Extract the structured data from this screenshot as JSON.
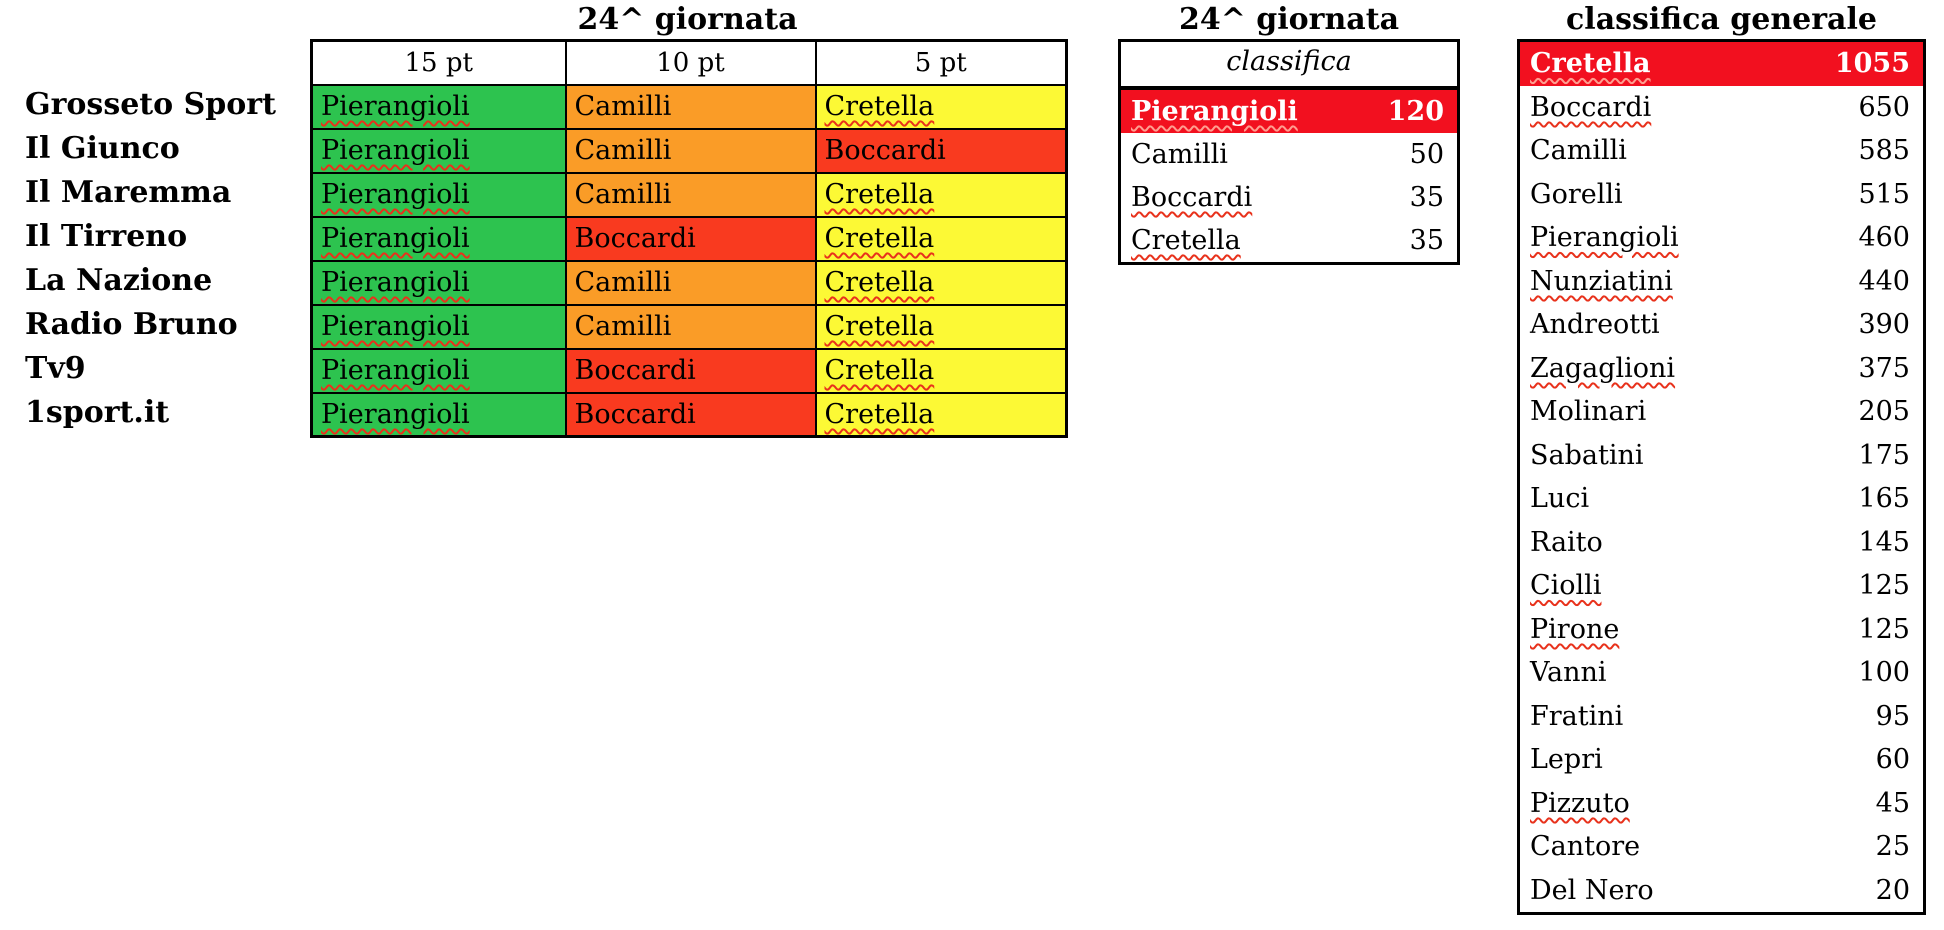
{
  "colors": {
    "cell_green": "#2dc34f",
    "cell_orange": "#fa9c27",
    "cell_red": "#f93a1f",
    "cell_yellow": "#fcf935",
    "highlight_red": "#f2101f",
    "squiggle_red": "#e8321c",
    "squiggle_on_red": "#ff9e90",
    "grid": "#000000"
  },
  "votes_table": {
    "title": "24^ giornata",
    "point_columns": [
      "15 pt",
      "10 pt",
      "5 pt"
    ],
    "rows": [
      {
        "source": "Grosseto Sport",
        "votes": [
          {
            "name": "Pierangioli",
            "color": "green",
            "misspelled": true
          },
          {
            "name": "Camilli",
            "color": "orange",
            "misspelled": false
          },
          {
            "name": "Cretella",
            "color": "yellow",
            "misspelled": true
          }
        ]
      },
      {
        "source": "Il Giunco",
        "votes": [
          {
            "name": "Pierangioli",
            "color": "green",
            "misspelled": true
          },
          {
            "name": "Camilli",
            "color": "orange",
            "misspelled": false
          },
          {
            "name": "Boccardi",
            "color": "red",
            "misspelled": false
          }
        ]
      },
      {
        "source": "Il Maremma",
        "votes": [
          {
            "name": "Pierangioli",
            "color": "green",
            "misspelled": true
          },
          {
            "name": "Camilli",
            "color": "orange",
            "misspelled": false
          },
          {
            "name": "Cretella",
            "color": "yellow",
            "misspelled": true
          }
        ]
      },
      {
        "source": "Il Tirreno",
        "votes": [
          {
            "name": "Pierangioli",
            "color": "green",
            "misspelled": true
          },
          {
            "name": "Boccardi",
            "color": "red",
            "misspelled": false
          },
          {
            "name": "Cretella",
            "color": "yellow",
            "misspelled": true
          }
        ]
      },
      {
        "source": "La Nazione",
        "votes": [
          {
            "name": "Pierangioli",
            "color": "green",
            "misspelled": true
          },
          {
            "name": "Camilli",
            "color": "orange",
            "misspelled": false
          },
          {
            "name": "Cretella",
            "color": "yellow",
            "misspelled": true
          }
        ]
      },
      {
        "source": "Radio Bruno",
        "votes": [
          {
            "name": "Pierangioli",
            "color": "green",
            "misspelled": true
          },
          {
            "name": "Camilli",
            "color": "orange",
            "misspelled": false
          },
          {
            "name": "Cretella",
            "color": "yellow",
            "misspelled": true
          }
        ]
      },
      {
        "source": "Tv9",
        "votes": [
          {
            "name": "Pierangioli",
            "color": "green",
            "misspelled": true
          },
          {
            "name": "Boccardi",
            "color": "red",
            "misspelled": false
          },
          {
            "name": "Cretella",
            "color": "yellow",
            "misspelled": true
          }
        ]
      },
      {
        "source": "1sport.it",
        "votes": [
          {
            "name": "Pierangioli",
            "color": "green",
            "misspelled": true
          },
          {
            "name": "Boccardi",
            "color": "red",
            "misspelled": false
          },
          {
            "name": "Cretella",
            "color": "yellow",
            "misspelled": true
          }
        ]
      }
    ]
  },
  "round_ranking": {
    "title": "24^ giornata",
    "header": "classifica",
    "rows": [
      {
        "name": "Pierangioli",
        "points": "120",
        "highlight": true,
        "misspelled": true
      },
      {
        "name": "Camilli",
        "points": "50",
        "highlight": false,
        "misspelled": false
      },
      {
        "name": "Boccardi",
        "points": "35",
        "highlight": false,
        "misspelled": true
      },
      {
        "name": "Cretella",
        "points": "35",
        "highlight": false,
        "misspelled": true
      }
    ]
  },
  "general_ranking": {
    "title": "classifica generale",
    "rows": [
      {
        "name": "Cretella",
        "points": "1055",
        "highlight": true,
        "misspelled": true
      },
      {
        "name": "Boccardi",
        "points": "650",
        "highlight": false,
        "misspelled": true
      },
      {
        "name": "Camilli",
        "points": "585",
        "highlight": false,
        "misspelled": false
      },
      {
        "name": "Gorelli",
        "points": "515",
        "highlight": false,
        "misspelled": false
      },
      {
        "name": "Pierangioli",
        "points": "460",
        "highlight": false,
        "misspelled": true
      },
      {
        "name": "Nunziatini",
        "points": "440",
        "highlight": false,
        "misspelled": true
      },
      {
        "name": "Andreotti",
        "points": "390",
        "highlight": false,
        "misspelled": false
      },
      {
        "name": "Zagaglioni",
        "points": "375",
        "highlight": false,
        "misspelled": true
      },
      {
        "name": "Molinari",
        "points": "205",
        "highlight": false,
        "misspelled": false
      },
      {
        "name": "Sabatini",
        "points": "175",
        "highlight": false,
        "misspelled": false
      },
      {
        "name": "Luci",
        "points": "165",
        "highlight": false,
        "misspelled": false
      },
      {
        "name": "Raito",
        "points": "145",
        "highlight": false,
        "misspelled": false
      },
      {
        "name": "Ciolli",
        "points": "125",
        "highlight": false,
        "misspelled": true
      },
      {
        "name": "Pirone",
        "points": "125",
        "highlight": false,
        "misspelled": true
      },
      {
        "name": "Vanni",
        "points": "100",
        "highlight": false,
        "misspelled": false
      },
      {
        "name": "Fratini",
        "points": "95",
        "highlight": false,
        "misspelled": false
      },
      {
        "name": "Lepri",
        "points": "60",
        "highlight": false,
        "misspelled": false
      },
      {
        "name": "Pizzuto",
        "points": "45",
        "highlight": false,
        "misspelled": true
      },
      {
        "name": "Cantore",
        "points": "25",
        "highlight": false,
        "misspelled": false
      },
      {
        "name": "Del Nero",
        "points": "20",
        "highlight": false,
        "misspelled": false
      }
    ]
  }
}
